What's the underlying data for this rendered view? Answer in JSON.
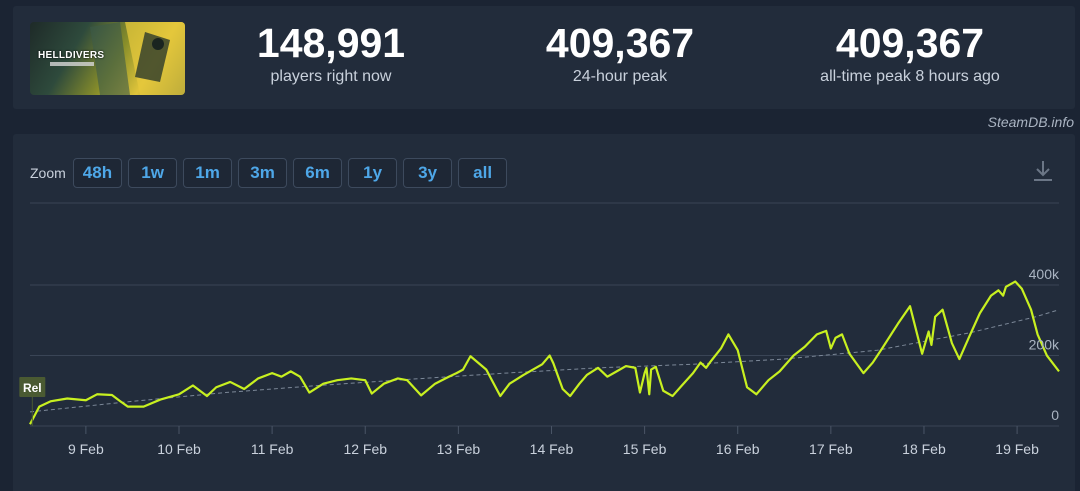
{
  "game": {
    "title": "HELLDIVERS"
  },
  "stats": [
    {
      "value": "148,991",
      "label": "players right now"
    },
    {
      "value": "409,367",
      "label": "24-hour peak"
    },
    {
      "value": "409,367",
      "label": "all-time peak 8 hours ago"
    }
  ],
  "credit": "SteamDB.info",
  "zoom": {
    "label": "Zoom",
    "options": [
      "48h",
      "1w",
      "1m",
      "3m",
      "6m",
      "1y",
      "3y",
      "all"
    ]
  },
  "colors": {
    "line": "#c8f020",
    "trend": "#7c8898",
    "accent": "#4ea7e8"
  },
  "icons": {
    "download": "download-icon"
  },
  "chart_data": {
    "type": "line",
    "x_unit": "day (Feb)",
    "x_domain": [
      8.4,
      19.45
    ],
    "ylim": [
      0,
      420000
    ],
    "yticks": [
      0,
      200000,
      400000
    ],
    "ytick_labels": [
      "0",
      "200k",
      "400k"
    ],
    "xticks": [
      9,
      10,
      11,
      12,
      13,
      14,
      15,
      16,
      17,
      18,
      19
    ],
    "xtick_labels": [
      "9 Feb",
      "10 Feb",
      "11 Feb",
      "12 Feb",
      "13 Feb",
      "14 Feb",
      "15 Feb",
      "16 Feb",
      "17 Feb",
      "18 Feb",
      "19 Feb"
    ],
    "grid": true,
    "annotation": {
      "label": "Rel",
      "x": 8.5
    },
    "series": [
      {
        "x": [
          8.4,
          8.5,
          8.62,
          8.8,
          9.0,
          9.12,
          9.28,
          9.36,
          9.45,
          9.62,
          9.8,
          10.0,
          10.15,
          10.3,
          10.4,
          10.55,
          10.7,
          10.85,
          11.0,
          11.1,
          11.2,
          11.3,
          11.4,
          11.55,
          11.7,
          11.85,
          12.0,
          12.07,
          12.2,
          12.35,
          12.45,
          12.6,
          12.75,
          12.9,
          12.98,
          13.05,
          13.13,
          13.3,
          13.45,
          13.55,
          13.7,
          13.9,
          13.98,
          14.02,
          14.12,
          14.2,
          14.3,
          14.38,
          14.5,
          14.6,
          14.7,
          14.8,
          14.9,
          14.95,
          15.0,
          15.02,
          15.05,
          15.07,
          15.12,
          15.2,
          15.3,
          15.4,
          15.52,
          15.6,
          15.66,
          15.7,
          15.82,
          15.9,
          16.0,
          16.1,
          16.2,
          16.33,
          16.45,
          16.6,
          16.72,
          16.85,
          16.95,
          17.0,
          17.05,
          17.12,
          17.2,
          17.35,
          17.45,
          17.55,
          17.72,
          17.85,
          17.98,
          18.05,
          18.08,
          18.12,
          18.2,
          18.3,
          18.38,
          18.48,
          18.6,
          18.72,
          18.8,
          18.85,
          18.88,
          18.98,
          19.05,
          19.15,
          19.22,
          19.32,
          19.45
        ],
        "y": [
          5000,
          55000,
          70000,
          78000,
          73000,
          90000,
          88000,
          72000,
          55000,
          55000,
          75000,
          90000,
          115000,
          85000,
          110000,
          125000,
          105000,
          135000,
          150000,
          140000,
          155000,
          140000,
          95000,
          120000,
          130000,
          135000,
          130000,
          92000,
          120000,
          135000,
          130000,
          87000,
          120000,
          140000,
          150000,
          160000,
          198000,
          160000,
          85000,
          120000,
          145000,
          175000,
          200000,
          178000,
          105000,
          85000,
          120000,
          145000,
          165000,
          140000,
          155000,
          170000,
          165000,
          95000,
          150000,
          165000,
          90000,
          160000,
          168000,
          100000,
          85000,
          115000,
          150000,
          180000,
          165000,
          180000,
          220000,
          260000,
          215000,
          110000,
          90000,
          130000,
          155000,
          200000,
          225000,
          260000,
          270000,
          220000,
          250000,
          260000,
          205000,
          150000,
          180000,
          220000,
          290000,
          340000,
          205000,
          268000,
          230000,
          310000,
          330000,
          235000,
          190000,
          250000,
          320000,
          370000,
          385000,
          370000,
          395000,
          410000,
          390000,
          330000,
          260000,
          200000,
          155000
        ]
      }
    ],
    "trend": {
      "x": [
        8.4,
        9.5,
        10.5,
        11.5,
        12.5,
        13.5,
        14.5,
        15.5,
        16.5,
        17.5,
        18.5,
        19.2,
        19.45
      ],
      "y": [
        40000,
        70000,
        95000,
        115000,
        133000,
        150000,
        165000,
        175000,
        190000,
        215000,
        265000,
        310000,
        330000
      ]
    }
  }
}
